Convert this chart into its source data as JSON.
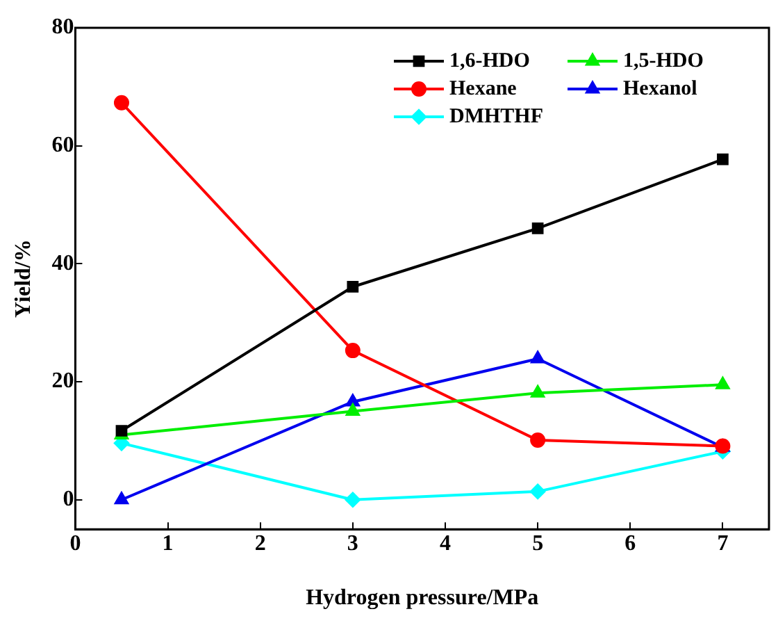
{
  "chart_data": {
    "type": "line",
    "xlabel": "Hydrogen pressure/MPa",
    "ylabel": "Yield/%",
    "x": [
      0.5,
      3,
      5,
      7
    ],
    "series": [
      {
        "name": "1,6-HDO",
        "color": "#000000",
        "marker": "square",
        "values": [
          11.7,
          36.1,
          46.0,
          57.7
        ]
      },
      {
        "name": "1,5-HDO",
        "color": "#00ee00",
        "marker": "triangle",
        "values": [
          11.0,
          15.0,
          18.1,
          19.5
        ]
      },
      {
        "name": "Hexane",
        "color": "#ff0000",
        "marker": "circle",
        "values": [
          67.3,
          25.3,
          10.1,
          9.1
        ]
      },
      {
        "name": "Hexanol",
        "color": "#0000ee",
        "marker": "triangle",
        "values": [
          0,
          16.6,
          23.9,
          8.9
        ]
      },
      {
        "name": "DMHTHF",
        "color": "#00ffff",
        "marker": "diamond",
        "values": [
          9.6,
          0,
          1.4,
          8.2
        ]
      }
    ],
    "xlim": [
      0,
      7.5
    ],
    "xticks": [
      0,
      1,
      2,
      3,
      4,
      5,
      6,
      7
    ],
    "ylim": [
      -5,
      80
    ],
    "yticks": [
      0,
      20,
      40,
      60,
      80
    ],
    "grid": false,
    "legend": "top right",
    "line_style": "solid"
  }
}
